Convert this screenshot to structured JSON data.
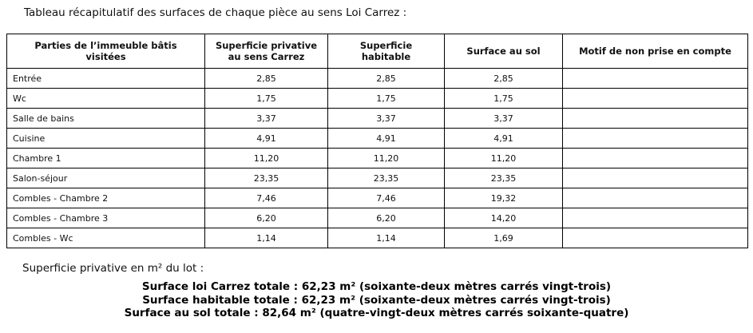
{
  "page": {
    "title": "Tableau récapitulatif des surfaces de chaque pièce au sens Loi Carrez :",
    "subtitle": "Superficie privative en m² du lot :"
  },
  "table": {
    "columns": [
      "Parties de l’immeuble bâtis visitées",
      "Superficie privative au sens Carrez",
      "Superficie habitable",
      "Surface au sol",
      "Motif de non prise en compte"
    ],
    "rows": [
      {
        "cells": [
          "Entrée",
          "2,85",
          "2,85",
          "2,85",
          ""
        ]
      },
      {
        "cells": [
          "Wc",
          "1,75",
          "1,75",
          "1,75",
          ""
        ]
      },
      {
        "cells": [
          "Salle de bains",
          "3,37",
          "3,37",
          "3,37",
          ""
        ]
      },
      {
        "cells": [
          "Cuisine",
          "4,91",
          "4,91",
          "4,91",
          ""
        ]
      },
      {
        "cells": [
          "Chambre 1",
          "11,20",
          "11,20",
          "11,20",
          ""
        ]
      },
      {
        "cells": [
          "Salon-séjour",
          "23,35",
          "23,35",
          "23,35",
          ""
        ]
      },
      {
        "cells": [
          "Combles - Chambre 2",
          "7,46",
          "7,46",
          "19,32",
          ""
        ]
      },
      {
        "cells": [
          "Combles - Chambre 3",
          "6,20",
          "6,20",
          "14,20",
          ""
        ]
      },
      {
        "cells": [
          "Combles - Wc",
          "1,14",
          "1,14",
          "1,69",
          ""
        ]
      }
    ]
  },
  "totals": {
    "carrez": "Surface loi Carrez totale : 62,23 m² (soixante-deux mètres carrés vingt-trois)",
    "habitable": "Surface habitable totale : 62,23 m² (soixante-deux mètres carrés vingt-trois)",
    "sol": "Surface au sol totale : 82,64 m² (quatre-vingt-deux mètres carrés soixante-quatre)"
  }
}
